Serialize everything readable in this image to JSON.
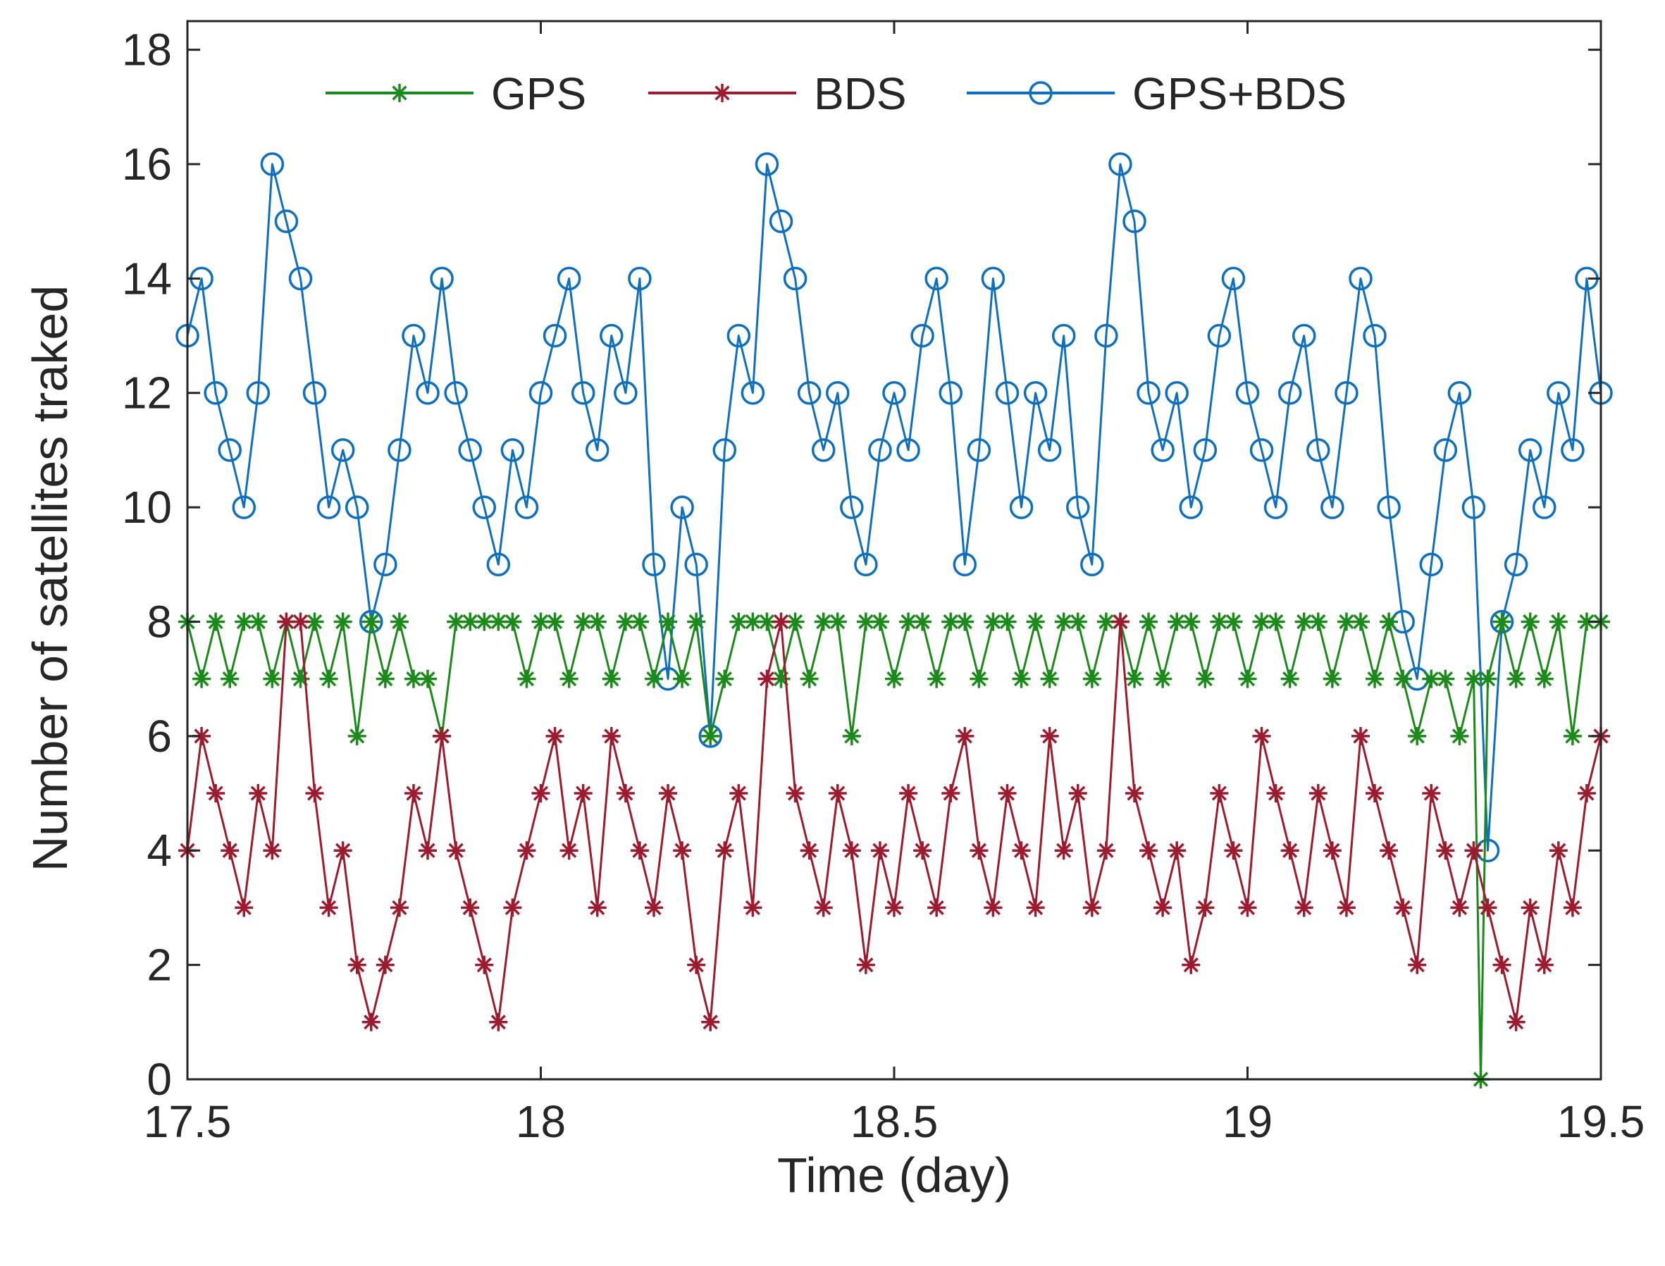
{
  "chart_data": {
    "type": "line",
    "title": "",
    "xlabel": "Time (day)",
    "ylabel": "Number of satellites traked",
    "xlim": [
      17.5,
      19.5
    ],
    "ylim": [
      0,
      18.5
    ],
    "xticks": [
      "17.5",
      "18",
      "18.5",
      "19",
      "19.5"
    ],
    "yticks": [
      "0",
      "2",
      "4",
      "6",
      "8",
      "10",
      "12",
      "14",
      "16",
      "18"
    ],
    "legend_position": "top",
    "colors": {
      "GPS": "#1b8a1b",
      "BDS": "#9c1b2e",
      "GPS+BDS": "#0f6fbf",
      "axis": "#262626"
    },
    "series": [
      {
        "name": "GPS",
        "marker": "asterisk",
        "x": [
          17.5,
          17.52,
          17.54,
          17.56,
          17.58,
          17.6,
          17.62,
          17.64,
          17.66,
          17.68,
          17.7,
          17.72,
          17.74,
          17.76,
          17.78,
          17.8,
          17.82,
          17.84,
          17.86,
          17.88,
          17.9,
          17.92,
          17.94,
          17.96,
          17.98,
          18.0,
          18.02,
          18.04,
          18.06,
          18.08,
          18.1,
          18.12,
          18.14,
          18.16,
          18.18,
          18.2,
          18.22,
          18.24,
          18.26,
          18.28,
          18.3,
          18.32,
          18.34,
          18.36,
          18.38,
          18.4,
          18.42,
          18.44,
          18.46,
          18.48,
          18.5,
          18.52,
          18.54,
          18.56,
          18.58,
          18.6,
          18.62,
          18.64,
          18.66,
          18.68,
          18.7,
          18.72,
          18.74,
          18.76,
          18.78,
          18.8,
          18.82,
          18.84,
          18.86,
          18.88,
          18.9,
          18.92,
          18.94,
          18.96,
          18.98,
          19.0,
          19.02,
          19.04,
          19.06,
          19.08,
          19.1,
          19.12,
          19.14,
          19.16,
          19.18,
          19.2,
          19.22,
          19.24,
          19.26,
          19.28,
          19.3,
          19.32,
          19.33,
          19.34,
          19.36,
          19.38,
          19.4,
          19.42,
          19.44,
          19.46,
          19.48,
          19.5
        ],
        "values": [
          8,
          7,
          8,
          7,
          8,
          8,
          7,
          8,
          7,
          8,
          7,
          8,
          6,
          8,
          7,
          8,
          7,
          7,
          6,
          8,
          8,
          8,
          8,
          8,
          7,
          8,
          8,
          7,
          8,
          8,
          7,
          8,
          8,
          7,
          8,
          7,
          8,
          6,
          7,
          8,
          8,
          8,
          7,
          8,
          7,
          8,
          8,
          6,
          8,
          8,
          7,
          8,
          8,
          7,
          8,
          8,
          7,
          8,
          8,
          7,
          8,
          7,
          8,
          8,
          7,
          8,
          8,
          7,
          8,
          7,
          8,
          8,
          7,
          8,
          8,
          7,
          8,
          8,
          7,
          8,
          8,
          7,
          8,
          8,
          7,
          8,
          7,
          6,
          7,
          7,
          6,
          7,
          0,
          7,
          8,
          7,
          8,
          7,
          8,
          6,
          8,
          8
        ]
      },
      {
        "name": "BDS",
        "marker": "asterisk",
        "x": [
          17.5,
          17.52,
          17.54,
          17.56,
          17.58,
          17.6,
          17.62,
          17.64,
          17.66,
          17.68,
          17.7,
          17.72,
          17.74,
          17.76,
          17.78,
          17.8,
          17.82,
          17.84,
          17.86,
          17.88,
          17.9,
          17.92,
          17.94,
          17.96,
          17.98,
          18.0,
          18.02,
          18.04,
          18.06,
          18.08,
          18.1,
          18.12,
          18.14,
          18.16,
          18.18,
          18.2,
          18.22,
          18.24,
          18.26,
          18.28,
          18.3,
          18.32,
          18.34,
          18.36,
          18.38,
          18.4,
          18.42,
          18.44,
          18.46,
          18.48,
          18.5,
          18.52,
          18.54,
          18.56,
          18.58,
          18.6,
          18.62,
          18.64,
          18.66,
          18.68,
          18.7,
          18.72,
          18.74,
          18.76,
          18.78,
          18.8,
          18.82,
          18.84,
          18.86,
          18.88,
          18.9,
          18.92,
          18.94,
          18.96,
          18.98,
          19.0,
          19.02,
          19.04,
          19.06,
          19.08,
          19.1,
          19.12,
          19.14,
          19.16,
          19.18,
          19.2,
          19.22,
          19.24,
          19.26,
          19.28,
          19.3,
          19.32,
          19.34,
          19.36,
          19.38,
          19.4,
          19.42,
          19.44,
          19.46,
          19.48,
          19.5
        ],
        "values": [
          4,
          6,
          5,
          4,
          3,
          5,
          4,
          8,
          8,
          5,
          3,
          4,
          2,
          1,
          2,
          3,
          5,
          4,
          6,
          4,
          3,
          2,
          1,
          3,
          4,
          5,
          6,
          4,
          5,
          3,
          6,
          5,
          4,
          3,
          5,
          4,
          2,
          1,
          4,
          5,
          3,
          7,
          8,
          5,
          4,
          3,
          5,
          4,
          2,
          4,
          3,
          5,
          4,
          3,
          5,
          6,
          4,
          3,
          5,
          4,
          3,
          6,
          4,
          5,
          3,
          4,
          8,
          5,
          4,
          3,
          4,
          2,
          3,
          5,
          4,
          3,
          6,
          5,
          4,
          3,
          5,
          4,
          3,
          6,
          5,
          4,
          3,
          2,
          5,
          4,
          3,
          4,
          3,
          2,
          1,
          3,
          2,
          4,
          3,
          5,
          6
        ]
      },
      {
        "name": "GPS+BDS",
        "marker": "circle",
        "x": [
          17.5,
          17.52,
          17.54,
          17.56,
          17.58,
          17.6,
          17.62,
          17.64,
          17.66,
          17.68,
          17.7,
          17.72,
          17.74,
          17.76,
          17.78,
          17.8,
          17.82,
          17.84,
          17.86,
          17.88,
          17.9,
          17.92,
          17.94,
          17.96,
          17.98,
          18.0,
          18.02,
          18.04,
          18.06,
          18.08,
          18.1,
          18.12,
          18.14,
          18.16,
          18.18,
          18.2,
          18.22,
          18.24,
          18.26,
          18.28,
          18.3,
          18.32,
          18.34,
          18.36,
          18.38,
          18.4,
          18.42,
          18.44,
          18.46,
          18.48,
          18.5,
          18.52,
          18.54,
          18.56,
          18.58,
          18.6,
          18.62,
          18.64,
          18.66,
          18.68,
          18.7,
          18.72,
          18.74,
          18.76,
          18.78,
          18.8,
          18.82,
          18.84,
          18.86,
          18.88,
          18.9,
          18.92,
          18.94,
          18.96,
          18.98,
          19.0,
          19.02,
          19.04,
          19.06,
          19.08,
          19.1,
          19.12,
          19.14,
          19.16,
          19.18,
          19.2,
          19.22,
          19.24,
          19.26,
          19.28,
          19.3,
          19.32,
          19.34,
          19.36,
          19.38,
          19.4,
          19.42,
          19.44,
          19.46,
          19.48,
          19.5
        ],
        "values": [
          13,
          14,
          12,
          11,
          10,
          12,
          16,
          15,
          14,
          12,
          10,
          11,
          10,
          8,
          9,
          11,
          13,
          12,
          14,
          12,
          11,
          10,
          9,
          11,
          10,
          12,
          13,
          14,
          12,
          11,
          13,
          12,
          14,
          9,
          7,
          10,
          9,
          6,
          11,
          13,
          12,
          16,
          15,
          14,
          12,
          11,
          12,
          10,
          9,
          11,
          12,
          11,
          13,
          14,
          12,
          9,
          11,
          14,
          12,
          10,
          12,
          11,
          13,
          10,
          9,
          13,
          16,
          15,
          12,
          11,
          12,
          10,
          11,
          13,
          14,
          12,
          11,
          10,
          12,
          13,
          11,
          10,
          12,
          14,
          13,
          10,
          8,
          7,
          9,
          11,
          12,
          10,
          4,
          8,
          9,
          11,
          10,
          12,
          11,
          14,
          12
        ]
      }
    ]
  }
}
